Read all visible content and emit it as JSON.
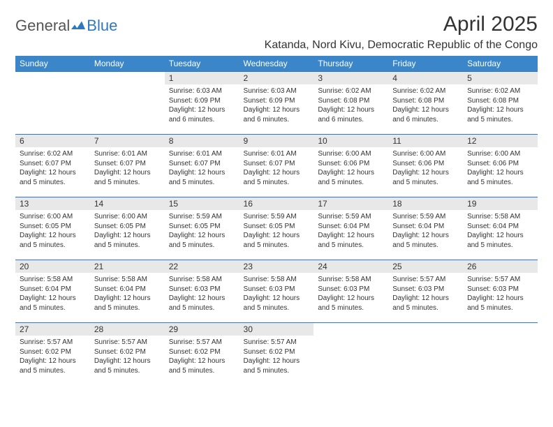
{
  "brand": {
    "part1": "General",
    "part2": "Blue"
  },
  "title": "April 2025",
  "location": "Katanda, Nord Kivu, Democratic Republic of the Congo",
  "colors": {
    "header_bg": "#3a86c8",
    "header_text": "#ffffff",
    "row_border": "#2f78bf",
    "daynum_bg": "#e8e8e8",
    "text": "#333333",
    "brand_gray": "#555555",
    "brand_blue": "#2f78bf",
    "background": "#ffffff"
  },
  "typography": {
    "title_fontsize": 30,
    "location_fontsize": 16,
    "dayheader_fontsize": 12,
    "daynum_fontsize": 12,
    "body_fontsize": 10
  },
  "calendar": {
    "day_headers": [
      "Sunday",
      "Monday",
      "Tuesday",
      "Wednesday",
      "Thursday",
      "Friday",
      "Saturday"
    ],
    "weeks": [
      [
        {
          "n": "",
          "sr": "",
          "ss": "",
          "dl": "",
          "empty": true
        },
        {
          "n": "",
          "sr": "",
          "ss": "",
          "dl": "",
          "empty": true
        },
        {
          "n": "1",
          "sr": "Sunrise: 6:03 AM",
          "ss": "Sunset: 6:09 PM",
          "dl": "Daylight: 12 hours and 6 minutes."
        },
        {
          "n": "2",
          "sr": "Sunrise: 6:03 AM",
          "ss": "Sunset: 6:09 PM",
          "dl": "Daylight: 12 hours and 6 minutes."
        },
        {
          "n": "3",
          "sr": "Sunrise: 6:02 AM",
          "ss": "Sunset: 6:08 PM",
          "dl": "Daylight: 12 hours and 6 minutes."
        },
        {
          "n": "4",
          "sr": "Sunrise: 6:02 AM",
          "ss": "Sunset: 6:08 PM",
          "dl": "Daylight: 12 hours and 6 minutes."
        },
        {
          "n": "5",
          "sr": "Sunrise: 6:02 AM",
          "ss": "Sunset: 6:08 PM",
          "dl": "Daylight: 12 hours and 5 minutes."
        }
      ],
      [
        {
          "n": "6",
          "sr": "Sunrise: 6:02 AM",
          "ss": "Sunset: 6:07 PM",
          "dl": "Daylight: 12 hours and 5 minutes."
        },
        {
          "n": "7",
          "sr": "Sunrise: 6:01 AM",
          "ss": "Sunset: 6:07 PM",
          "dl": "Daylight: 12 hours and 5 minutes."
        },
        {
          "n": "8",
          "sr": "Sunrise: 6:01 AM",
          "ss": "Sunset: 6:07 PM",
          "dl": "Daylight: 12 hours and 5 minutes."
        },
        {
          "n": "9",
          "sr": "Sunrise: 6:01 AM",
          "ss": "Sunset: 6:07 PM",
          "dl": "Daylight: 12 hours and 5 minutes."
        },
        {
          "n": "10",
          "sr": "Sunrise: 6:00 AM",
          "ss": "Sunset: 6:06 PM",
          "dl": "Daylight: 12 hours and 5 minutes."
        },
        {
          "n": "11",
          "sr": "Sunrise: 6:00 AM",
          "ss": "Sunset: 6:06 PM",
          "dl": "Daylight: 12 hours and 5 minutes."
        },
        {
          "n": "12",
          "sr": "Sunrise: 6:00 AM",
          "ss": "Sunset: 6:06 PM",
          "dl": "Daylight: 12 hours and 5 minutes."
        }
      ],
      [
        {
          "n": "13",
          "sr": "Sunrise: 6:00 AM",
          "ss": "Sunset: 6:05 PM",
          "dl": "Daylight: 12 hours and 5 minutes."
        },
        {
          "n": "14",
          "sr": "Sunrise: 6:00 AM",
          "ss": "Sunset: 6:05 PM",
          "dl": "Daylight: 12 hours and 5 minutes."
        },
        {
          "n": "15",
          "sr": "Sunrise: 5:59 AM",
          "ss": "Sunset: 6:05 PM",
          "dl": "Daylight: 12 hours and 5 minutes."
        },
        {
          "n": "16",
          "sr": "Sunrise: 5:59 AM",
          "ss": "Sunset: 6:05 PM",
          "dl": "Daylight: 12 hours and 5 minutes."
        },
        {
          "n": "17",
          "sr": "Sunrise: 5:59 AM",
          "ss": "Sunset: 6:04 PM",
          "dl": "Daylight: 12 hours and 5 minutes."
        },
        {
          "n": "18",
          "sr": "Sunrise: 5:59 AM",
          "ss": "Sunset: 6:04 PM",
          "dl": "Daylight: 12 hours and 5 minutes."
        },
        {
          "n": "19",
          "sr": "Sunrise: 5:58 AM",
          "ss": "Sunset: 6:04 PM",
          "dl": "Daylight: 12 hours and 5 minutes."
        }
      ],
      [
        {
          "n": "20",
          "sr": "Sunrise: 5:58 AM",
          "ss": "Sunset: 6:04 PM",
          "dl": "Daylight: 12 hours and 5 minutes."
        },
        {
          "n": "21",
          "sr": "Sunrise: 5:58 AM",
          "ss": "Sunset: 6:04 PM",
          "dl": "Daylight: 12 hours and 5 minutes."
        },
        {
          "n": "22",
          "sr": "Sunrise: 5:58 AM",
          "ss": "Sunset: 6:03 PM",
          "dl": "Daylight: 12 hours and 5 minutes."
        },
        {
          "n": "23",
          "sr": "Sunrise: 5:58 AM",
          "ss": "Sunset: 6:03 PM",
          "dl": "Daylight: 12 hours and 5 minutes."
        },
        {
          "n": "24",
          "sr": "Sunrise: 5:58 AM",
          "ss": "Sunset: 6:03 PM",
          "dl": "Daylight: 12 hours and 5 minutes."
        },
        {
          "n": "25",
          "sr": "Sunrise: 5:57 AM",
          "ss": "Sunset: 6:03 PM",
          "dl": "Daylight: 12 hours and 5 minutes."
        },
        {
          "n": "26",
          "sr": "Sunrise: 5:57 AM",
          "ss": "Sunset: 6:03 PM",
          "dl": "Daylight: 12 hours and 5 minutes."
        }
      ],
      [
        {
          "n": "27",
          "sr": "Sunrise: 5:57 AM",
          "ss": "Sunset: 6:02 PM",
          "dl": "Daylight: 12 hours and 5 minutes."
        },
        {
          "n": "28",
          "sr": "Sunrise: 5:57 AM",
          "ss": "Sunset: 6:02 PM",
          "dl": "Daylight: 12 hours and 5 minutes."
        },
        {
          "n": "29",
          "sr": "Sunrise: 5:57 AM",
          "ss": "Sunset: 6:02 PM",
          "dl": "Daylight: 12 hours and 5 minutes."
        },
        {
          "n": "30",
          "sr": "Sunrise: 5:57 AM",
          "ss": "Sunset: 6:02 PM",
          "dl": "Daylight: 12 hours and 5 minutes."
        },
        {
          "n": "",
          "sr": "",
          "ss": "",
          "dl": "",
          "empty": true
        },
        {
          "n": "",
          "sr": "",
          "ss": "",
          "dl": "",
          "empty": true
        },
        {
          "n": "",
          "sr": "",
          "ss": "",
          "dl": "",
          "empty": true
        }
      ]
    ]
  }
}
